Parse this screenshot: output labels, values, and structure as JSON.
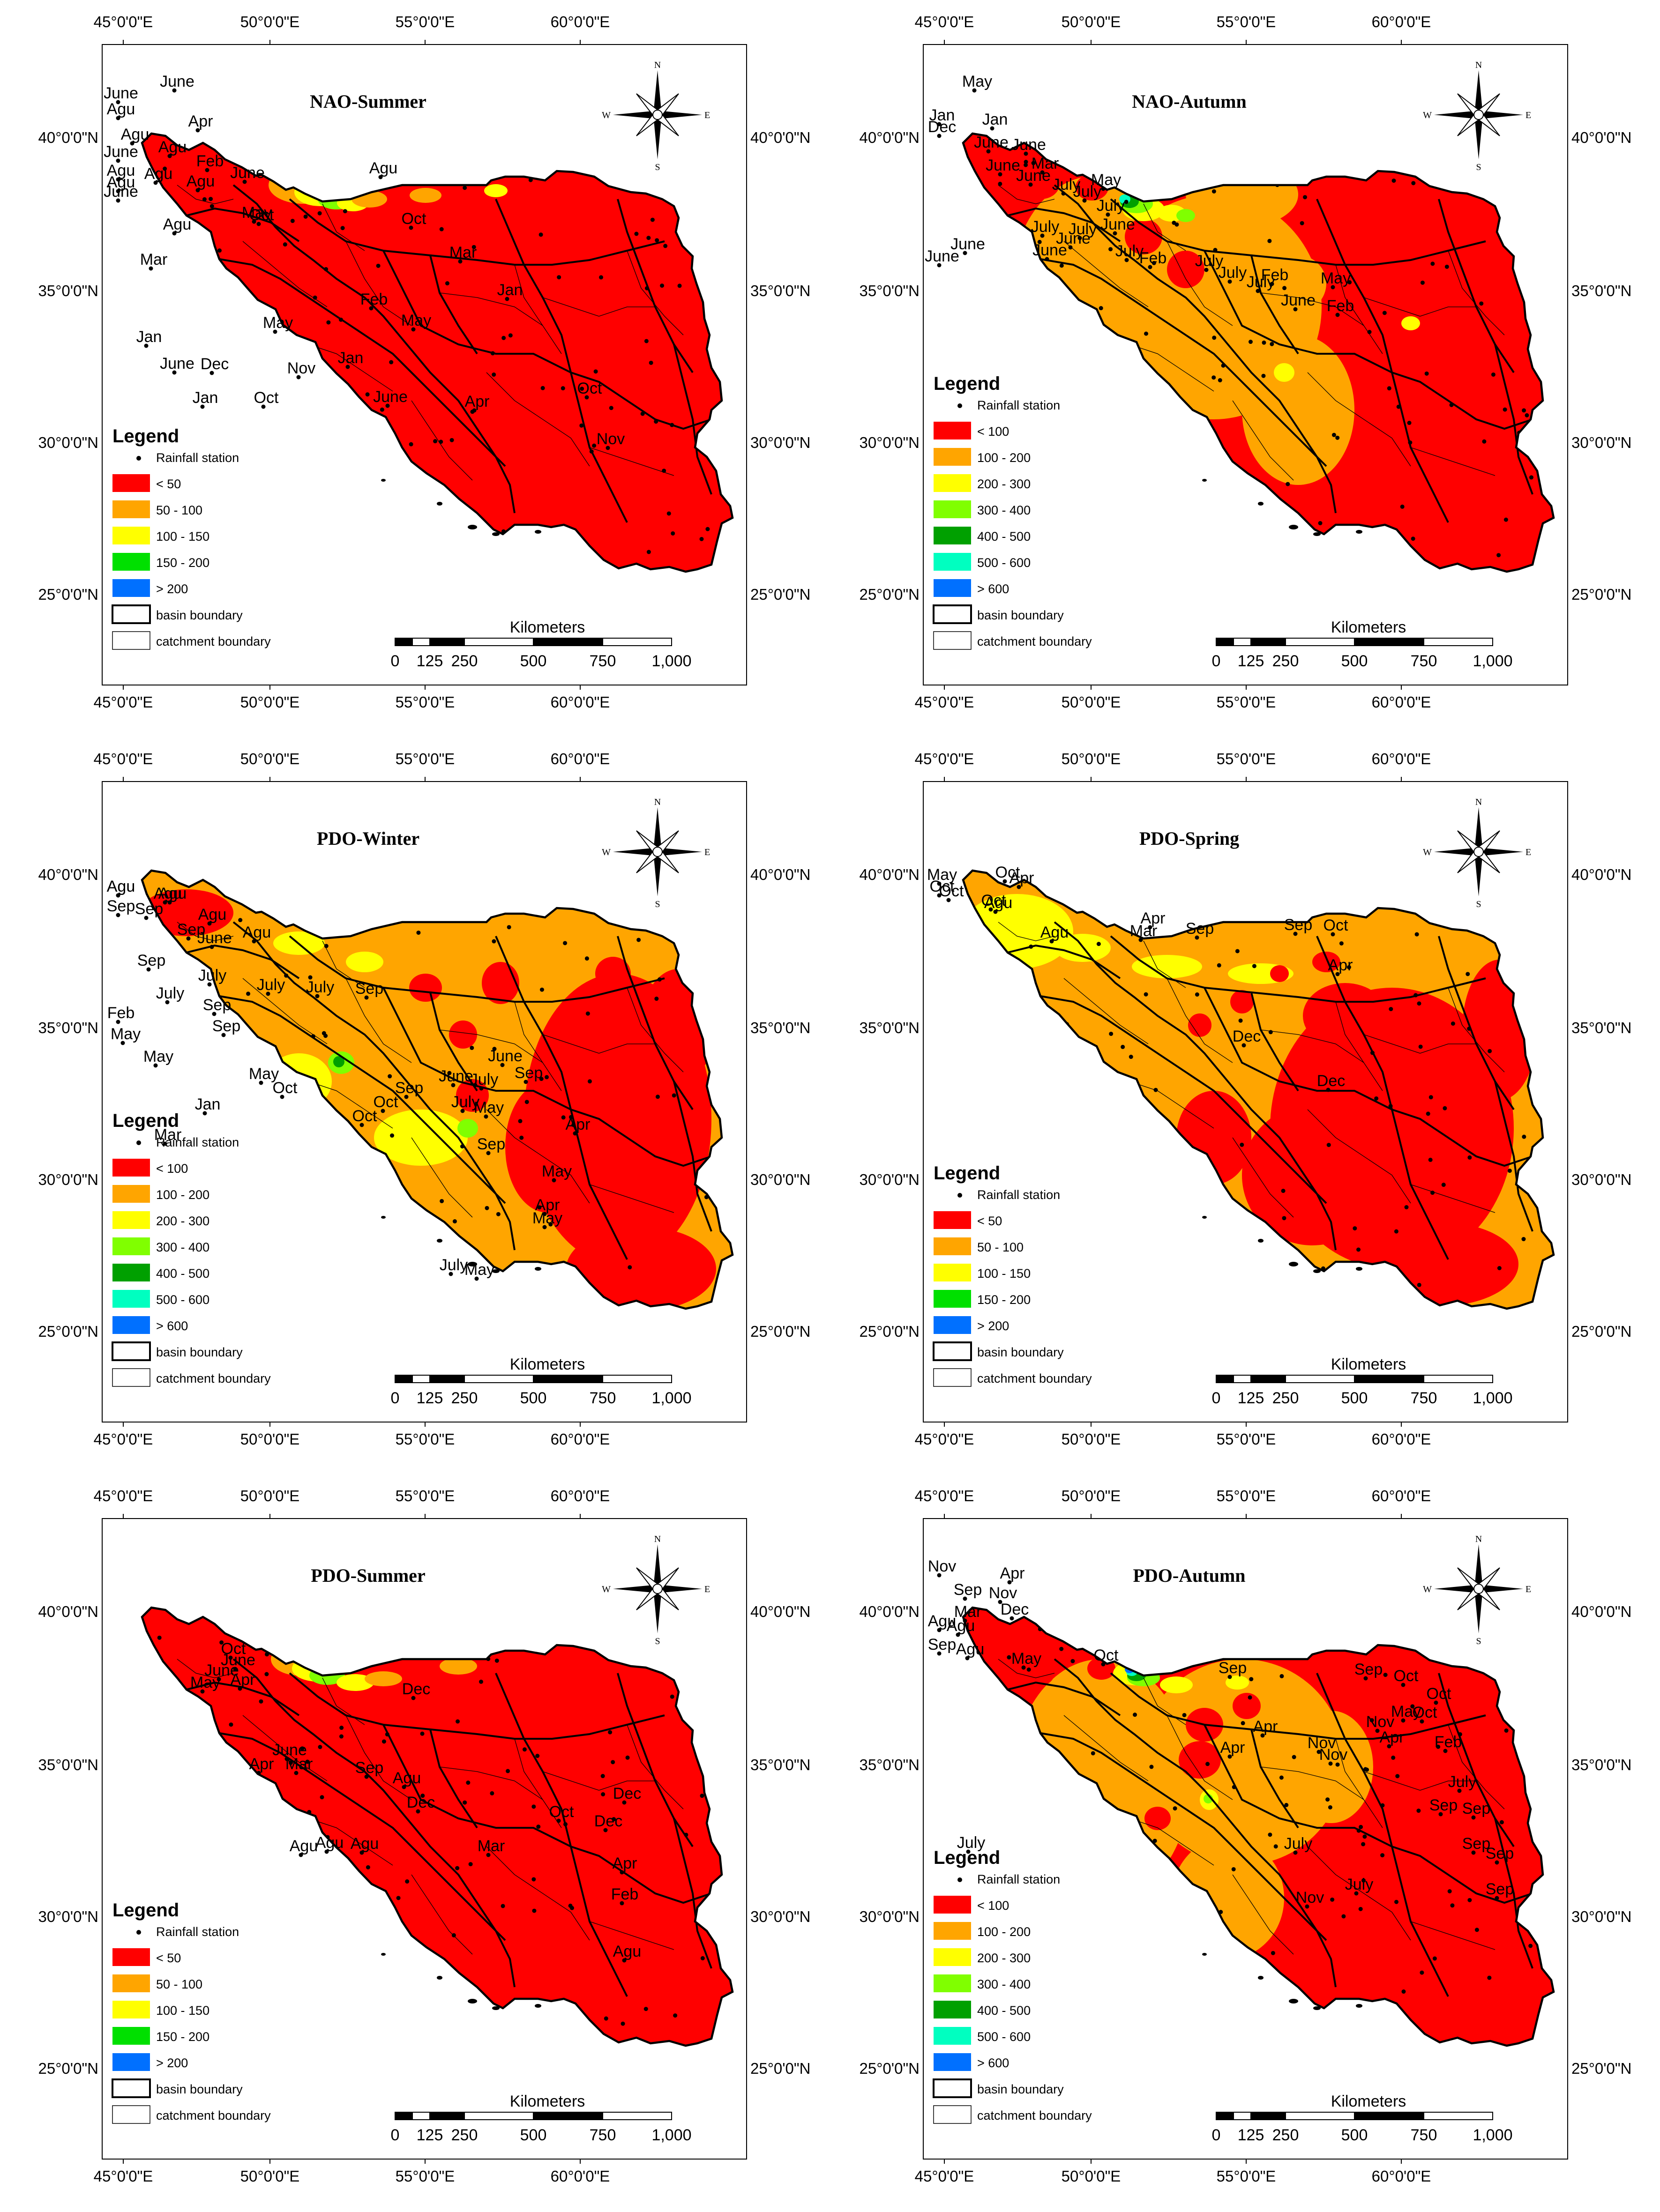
{
  "axes": {
    "lon_ticks": [
      "45°0'0\"E",
      "50°0'0\"E",
      "55°0'0\"E",
      "60°0'0\"E"
    ],
    "lat_ticks": [
      "40°0'0\"N",
      "35°0'0\"N",
      "30°0'0\"N",
      "25°0'0\"N"
    ]
  },
  "compass": {
    "n": "N",
    "s": "S",
    "e": "E",
    "w": "W"
  },
  "scale_bar": {
    "title": "Kilometers",
    "labels": [
      "0",
      "125",
      "250",
      "500",
      "750",
      "1,000"
    ]
  },
  "legend_common": {
    "title": "Legend",
    "station": "Rainfall station",
    "basin": "basin boundary",
    "catchment": "catchment boundary"
  },
  "colors": {
    "c1": "#ff0000",
    "c2": "#ffa500",
    "c3": "#ffff00",
    "c4": "#80ff00",
    "c5": "#00a000",
    "c6": "#00ffc0",
    "c7": "#0070ff",
    "boundary": "#000000"
  },
  "panels": [
    {
      "title": "NAO-Summer",
      "classes": [
        "< 50",
        "50 - 100",
        "100 - 150",
        "150 - 200",
        "> 200"
      ],
      "class_colors": [
        "#ff0000",
        "#ffa500",
        "#ffff00",
        "#00e000",
        "#0070ff"
      ],
      "dominant": "c1",
      "labels": [
        "June",
        "June",
        "Apr",
        "Agu",
        "Agu",
        "Agu",
        "June",
        "Feb",
        "Agu",
        "Agu",
        "Agu",
        "Agu",
        "June",
        "June",
        "May",
        "Agu",
        "Agu",
        "Oct",
        "Oct",
        "Mar",
        "Mar",
        "Jan",
        "Feb",
        "May",
        "May",
        "Jan",
        "Dec",
        "Nov",
        "June",
        "Jan",
        "Jan",
        "Oct",
        "June",
        "Apr",
        "Oct",
        "Nov"
      ]
    },
    {
      "title": "NAO-Autumn",
      "classes": [
        "< 100",
        "100 - 200",
        "200 - 300",
        "300 - 400",
        "400 - 500",
        "500 - 600",
        "> 600"
      ],
      "class_colors": [
        "#ff0000",
        "#ffa500",
        "#ffff00",
        "#80ff00",
        "#00a000",
        "#00ffc0",
        "#0070ff"
      ],
      "dominant": "c1",
      "labels": [
        "May",
        "Jan",
        "Jan",
        "Dec",
        "June",
        "June",
        "Mar",
        "June",
        "June",
        "July",
        "July",
        "July",
        "May",
        "June",
        "July",
        "July",
        "June",
        "June",
        "June",
        "July",
        "Feb",
        "June",
        "July",
        "July",
        "July",
        "Feb",
        "May",
        "June",
        "Feb"
      ]
    },
    {
      "title": "PDO-Winter",
      "classes": [
        "< 100",
        "100 - 200",
        "200 - 300",
        "300 - 400",
        "400 - 500",
        "500 - 600",
        "> 600"
      ],
      "class_colors": [
        "#ff0000",
        "#ffa500",
        "#ffff00",
        "#80ff00",
        "#00a000",
        "#00ffc0",
        "#0070ff"
      ],
      "dominant": "c2",
      "labels": [
        "Agu",
        "Agu",
        "Agu",
        "Agu",
        "Agu",
        "Sep",
        "Sep",
        "Sep",
        "Agu",
        "June",
        "Sep",
        "July",
        "July",
        "Sep",
        "Sep",
        "July",
        "July",
        "Sep",
        "Feb",
        "May",
        "May",
        "May",
        "Mar",
        "Jan",
        "Oct",
        "Oct",
        "Oct",
        "Sep",
        "June",
        "July",
        "July",
        "June",
        "Sep",
        "Sep",
        "May",
        "Apr",
        "May",
        "Apr",
        "May",
        "July",
        "May"
      ]
    },
    {
      "title": "PDO-Spring",
      "classes": [
        "< 50",
        "50 - 100",
        "100 - 150",
        "150 - 200",
        "> 200"
      ],
      "class_colors": [
        "#ff0000",
        "#ffa500",
        "#ffff00",
        "#00e000",
        "#0070ff"
      ],
      "dominant": "c2",
      "labels": [
        "May",
        "Oct",
        "Oct",
        "Oct",
        "Oct",
        "Apr",
        "Agu",
        "Agu",
        "Mar",
        "Apr",
        "Sep",
        "Sep",
        "Oct",
        "Apr",
        "Dec",
        "Dec"
      ]
    },
    {
      "title": "PDO-Summer",
      "classes": [
        "< 50",
        "50 - 100",
        "100 - 150",
        "150 - 200",
        "> 200"
      ],
      "class_colors": [
        "#ff0000",
        "#ffa500",
        "#ffff00",
        "#00e000",
        "#0070ff"
      ],
      "dominant": "c1",
      "labels": [
        "Oct",
        "June",
        "June",
        "May",
        "Dec",
        "Apr",
        "Apr",
        "June",
        "Mar",
        "Sep",
        "Agu",
        "Dec",
        "Oct",
        "Dec",
        "Dec",
        "Apr",
        "Feb",
        "Mar",
        "Agu",
        "Agu",
        "Agu",
        "Agu"
      ]
    },
    {
      "title": "PDO-Autumn",
      "classes": [
        "< 100",
        "100 - 200",
        "200 - 300",
        "300 - 400",
        "400 - 500",
        "500 - 600",
        "> 600"
      ],
      "class_colors": [
        "#ff0000",
        "#ffa500",
        "#ffff00",
        "#80ff00",
        "#00a000",
        "#00ffc0",
        "#0070ff"
      ],
      "dominant": "c1",
      "labels": [
        "Nov",
        "Apr",
        "Sep",
        "Nov",
        "Dec",
        "Mar",
        "Agu",
        "Agu",
        "Sep",
        "Agu",
        "May",
        "Oct",
        "Sep",
        "Sep",
        "Oct",
        "May",
        "Oct",
        "Oct",
        "Feb",
        "July",
        "Sep",
        "Apr",
        "Nov",
        "Nov",
        "Apr",
        "Nov",
        "Apr",
        "Sep",
        "Sep",
        "Sep",
        "Sep",
        "July",
        "July",
        "Nov",
        "July"
      ]
    }
  ]
}
